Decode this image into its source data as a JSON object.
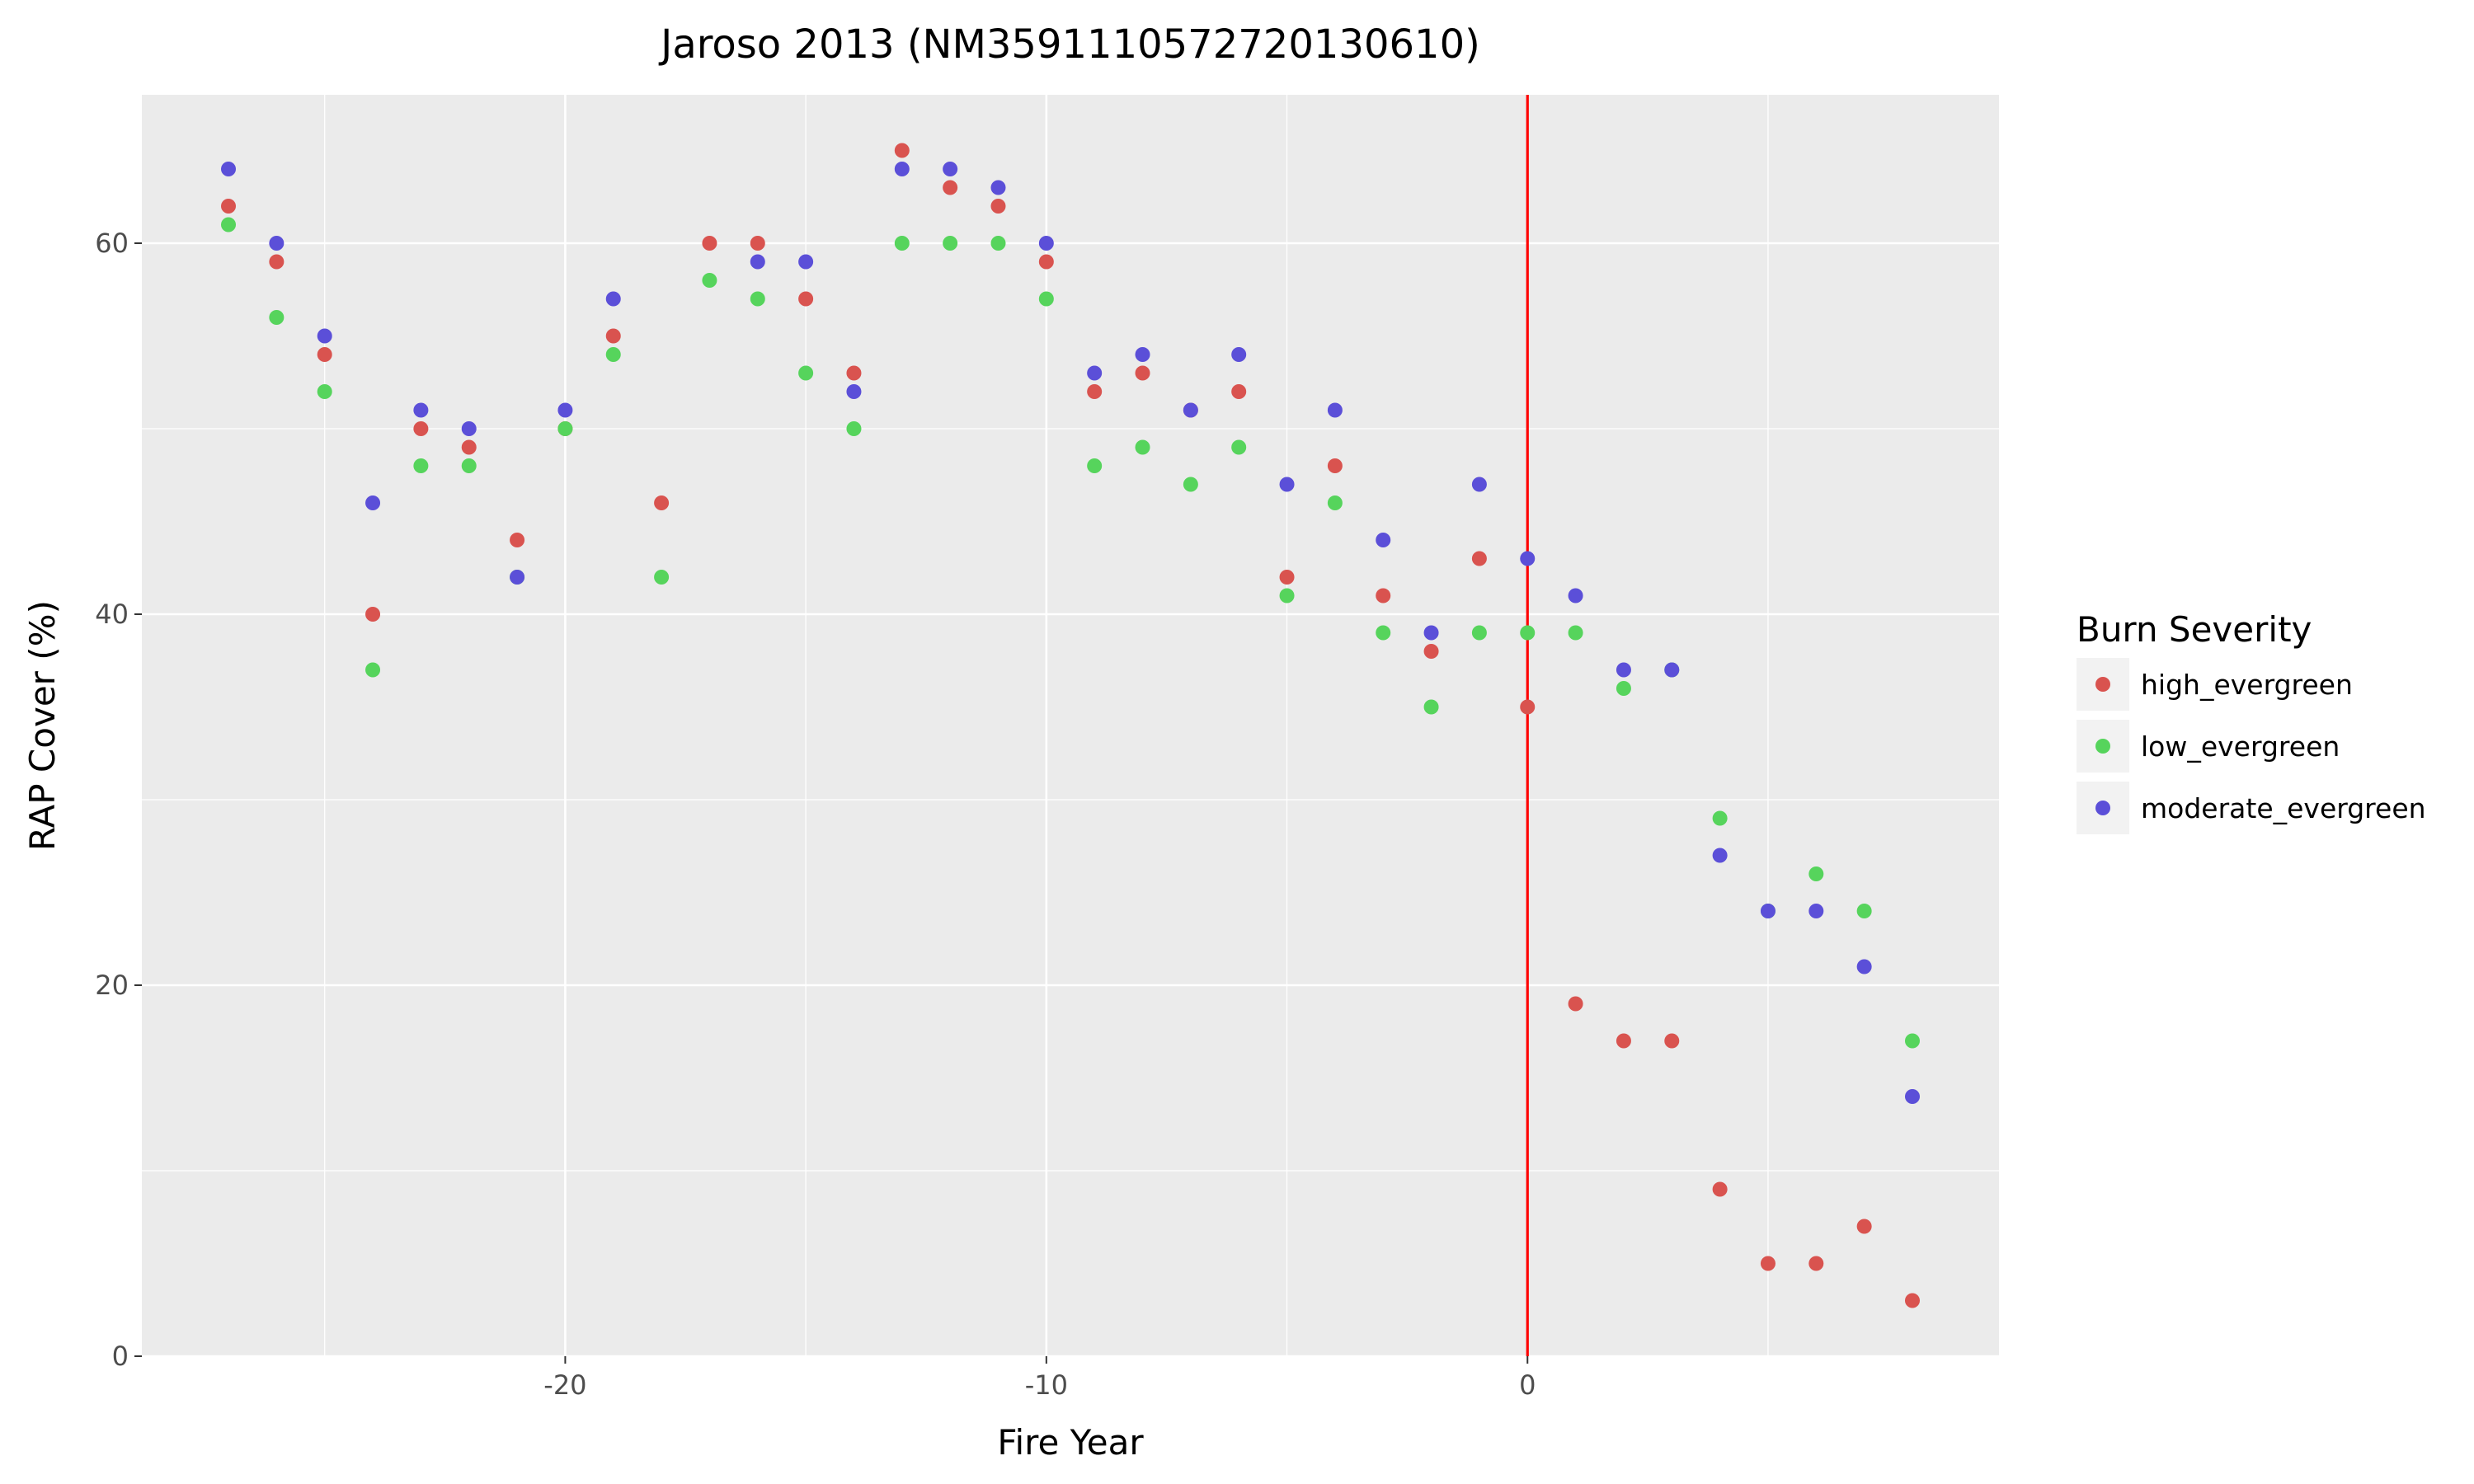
{
  "chart_data": {
    "type": "scatter",
    "title": "Jaroso 2013 (NM3591110572720130610)",
    "xlabel": "Fire Year",
    "ylabel": "RAP Cover (%)",
    "xlim": [
      -28.8,
      9.8
    ],
    "ylim": [
      0,
      68
    ],
    "x_ticks": [
      -20,
      -10,
      0
    ],
    "x_tick_labels": [
      "-20",
      "-10",
      "0"
    ],
    "y_ticks": [
      0,
      20,
      40,
      60
    ],
    "y_tick_labels": [
      "0",
      "20",
      "40",
      "60"
    ],
    "grid": true,
    "legend": {
      "title": "Burn Severity",
      "placement": "right"
    },
    "reference_line": {
      "x": 0,
      "color": "#ff0000"
    },
    "series": [
      {
        "name": "high_evergreen",
        "color": "#d9534f",
        "x": [
          -27,
          -26,
          -25,
          -24,
          -23,
          -22,
          -21,
          -20,
          -19,
          -18,
          -17,
          -16,
          -15,
          -14,
          -13,
          -12,
          -11,
          -10,
          -9,
          -8,
          -7,
          -6,
          -5,
          -4,
          -3,
          -2,
          -1,
          0,
          1,
          2,
          3,
          4,
          5,
          6,
          7,
          8
        ],
        "y": [
          62,
          59,
          54,
          40,
          50,
          49,
          44,
          50,
          55,
          46,
          60,
          60,
          57,
          53,
          65,
          63,
          62,
          59,
          52,
          53,
          51,
          52,
          42,
          48,
          41,
          38,
          43,
          35,
          19,
          17,
          17,
          9,
          5,
          5,
          7,
          3
        ]
      },
      {
        "name": "low_evergreen",
        "color": "#56d45c",
        "x": [
          -27,
          -26,
          -25,
          -24,
          -23,
          -22,
          -21,
          -20,
          -19,
          -18,
          -17,
          -16,
          -15,
          -14,
          -13,
          -12,
          -11,
          -10,
          -9,
          -8,
          -7,
          -6,
          -5,
          -4,
          -3,
          -2,
          -1,
          0,
          1,
          2,
          3,
          4,
          5,
          6,
          7,
          8
        ],
        "y": [
          61,
          56,
          52,
          37,
          48,
          48,
          42,
          50,
          54,
          42,
          58,
          57,
          53,
          50,
          60,
          60,
          60,
          57,
          48,
          49,
          47,
          49,
          41,
          46,
          39,
          35,
          39,
          39,
          39,
          36,
          37,
          29,
          24,
          26,
          24,
          17
        ]
      },
      {
        "name": "moderate_evergreen",
        "color": "#5b4fd8",
        "x": [
          -27,
          -26,
          -25,
          -24,
          -23,
          -22,
          -21,
          -20,
          -19,
          -16,
          -15,
          -14,
          -13,
          -12,
          -11,
          -10,
          -9,
          -8,
          -7,
          -6,
          -5,
          -4,
          -3,
          -2,
          -1,
          0,
          1,
          2,
          3,
          4,
          5,
          6,
          7,
          8
        ],
        "y": [
          64,
          60,
          55,
          46,
          51,
          50,
          42,
          51,
          57,
          59,
          59,
          52,
          64,
          64,
          63,
          60,
          53,
          54,
          51,
          54,
          47,
          51,
          44,
          39,
          47,
          43,
          41,
          37,
          37,
          27,
          24,
          24,
          21,
          14
        ]
      }
    ]
  }
}
